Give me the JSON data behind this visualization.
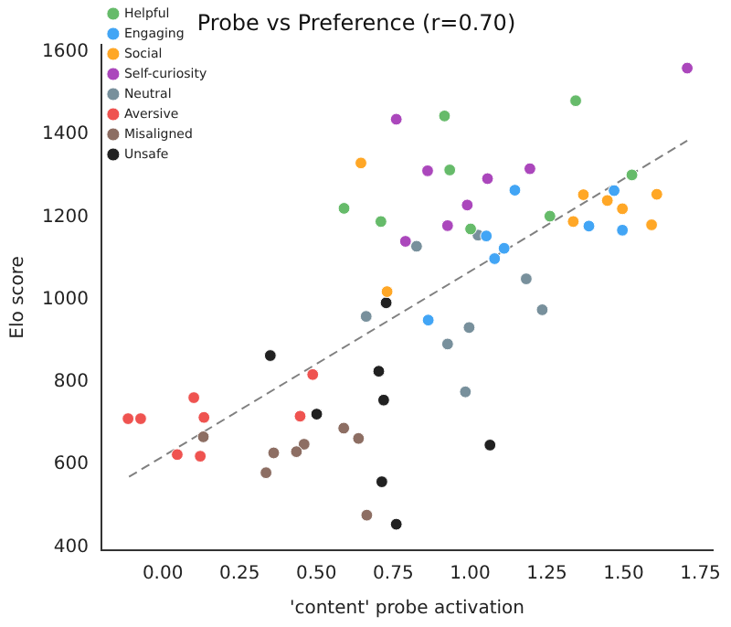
{
  "chart_data": {
    "type": "scatter",
    "title": "Probe vs Preference (r=0.70)",
    "xlabel": "'content' probe activation",
    "ylabel": "Elo score",
    "xlim": [
      -0.2,
      1.79
    ],
    "ylim": [
      392,
      1618
    ],
    "xticks": [
      {
        "value": 0,
        "label": "0.00"
      },
      {
        "value": 0.25,
        "label": "0.25"
      },
      {
        "value": 0.5,
        "label": "0.50"
      },
      {
        "value": 0.75,
        "label": "0.75"
      },
      {
        "value": 1,
        "label": "1.00"
      },
      {
        "value": 1.25,
        "label": "1.25"
      },
      {
        "value": 1.5,
        "label": "1.50"
      },
      {
        "value": 1.75,
        "label": "1.75"
      }
    ],
    "yticks": [
      400,
      600,
      800,
      1000,
      1200,
      1400,
      1600
    ],
    "legend": "top left",
    "marker": "circle",
    "grid": false,
    "series": [
      {
        "name": "Helpful",
        "color": "#66bb6a",
        "x": [
          0.59,
          0.71,
          0.917,
          0.934,
          1.344,
          1.527,
          1.26,
          1.002
        ],
        "values": [
          1221,
          1189,
          1445,
          1314,
          1482,
          1302,
          1202,
          1171
        ]
      },
      {
        "name": "Engaging",
        "color": "#42a5f5",
        "x": [
          1.146,
          1.469,
          1.387,
          1.496,
          1.053,
          1.111,
          1.08,
          0.864
        ],
        "values": [
          1265,
          1264,
          1178,
          1168,
          1154,
          1124,
          1099,
          950
        ]
      },
      {
        "name": "Social",
        "color": "#ffa726",
        "x": [
          0.645,
          0.73,
          1.369,
          1.608,
          1.447,
          1.496,
          1.336,
          1.591
        ],
        "values": [
          1331,
          1019,
          1254,
          1255,
          1240,
          1220,
          1189,
          1181
        ]
      },
      {
        "name": "Self-curiosity",
        "color": "#ab47bc",
        "x": [
          0.76,
          0.79,
          1.707,
          0.862,
          1.057,
          1.195,
          0.991,
          0.927
        ],
        "values": [
          1437,
          1141,
          1561,
          1312,
          1293,
          1317,
          1229,
          1179
        ]
      },
      {
        "name": "Neutral",
        "color": "#78909c",
        "x": [
          1.026,
          0.826,
          1.183,
          1.235,
          0.997,
          0.927,
          0.985,
          0.662
        ],
        "values": [
          1156,
          1129,
          1050,
          975,
          932,
          892,
          776,
          959
        ]
      },
      {
        "name": "Aversive",
        "color": "#ef5350",
        "x": [
          0.488,
          0.101,
          -0.113,
          -0.072,
          0.134,
          0.447,
          0.047,
          0.122
        ],
        "values": [
          818,
          762,
          711,
          711,
          714,
          717,
          624,
          620
        ]
      },
      {
        "name": "Misaligned",
        "color": "#8d6e63",
        "x": [
          0.132,
          0.589,
          0.637,
          0.46,
          0.435,
          0.361,
          0.336,
          0.664
        ],
        "values": [
          667,
          688,
          663,
          649,
          631,
          628,
          580,
          477
        ]
      },
      {
        "name": "Unsafe",
        "color": "#212121",
        "x": [
          0.727,
          0.35,
          0.501,
          0.703,
          0.719,
          0.713,
          0.76,
          1.065
        ],
        "values": [
          992,
          864,
          722,
          826,
          756,
          558,
          455,
          647
        ]
      },
      {
        "type": "line",
        "color": "#808080",
        "line_style": "dashed",
        "marker": "none",
        "x": [
          -0.11,
          1.707
        ],
        "values": [
          570,
          1385
        ]
      }
    ]
  }
}
